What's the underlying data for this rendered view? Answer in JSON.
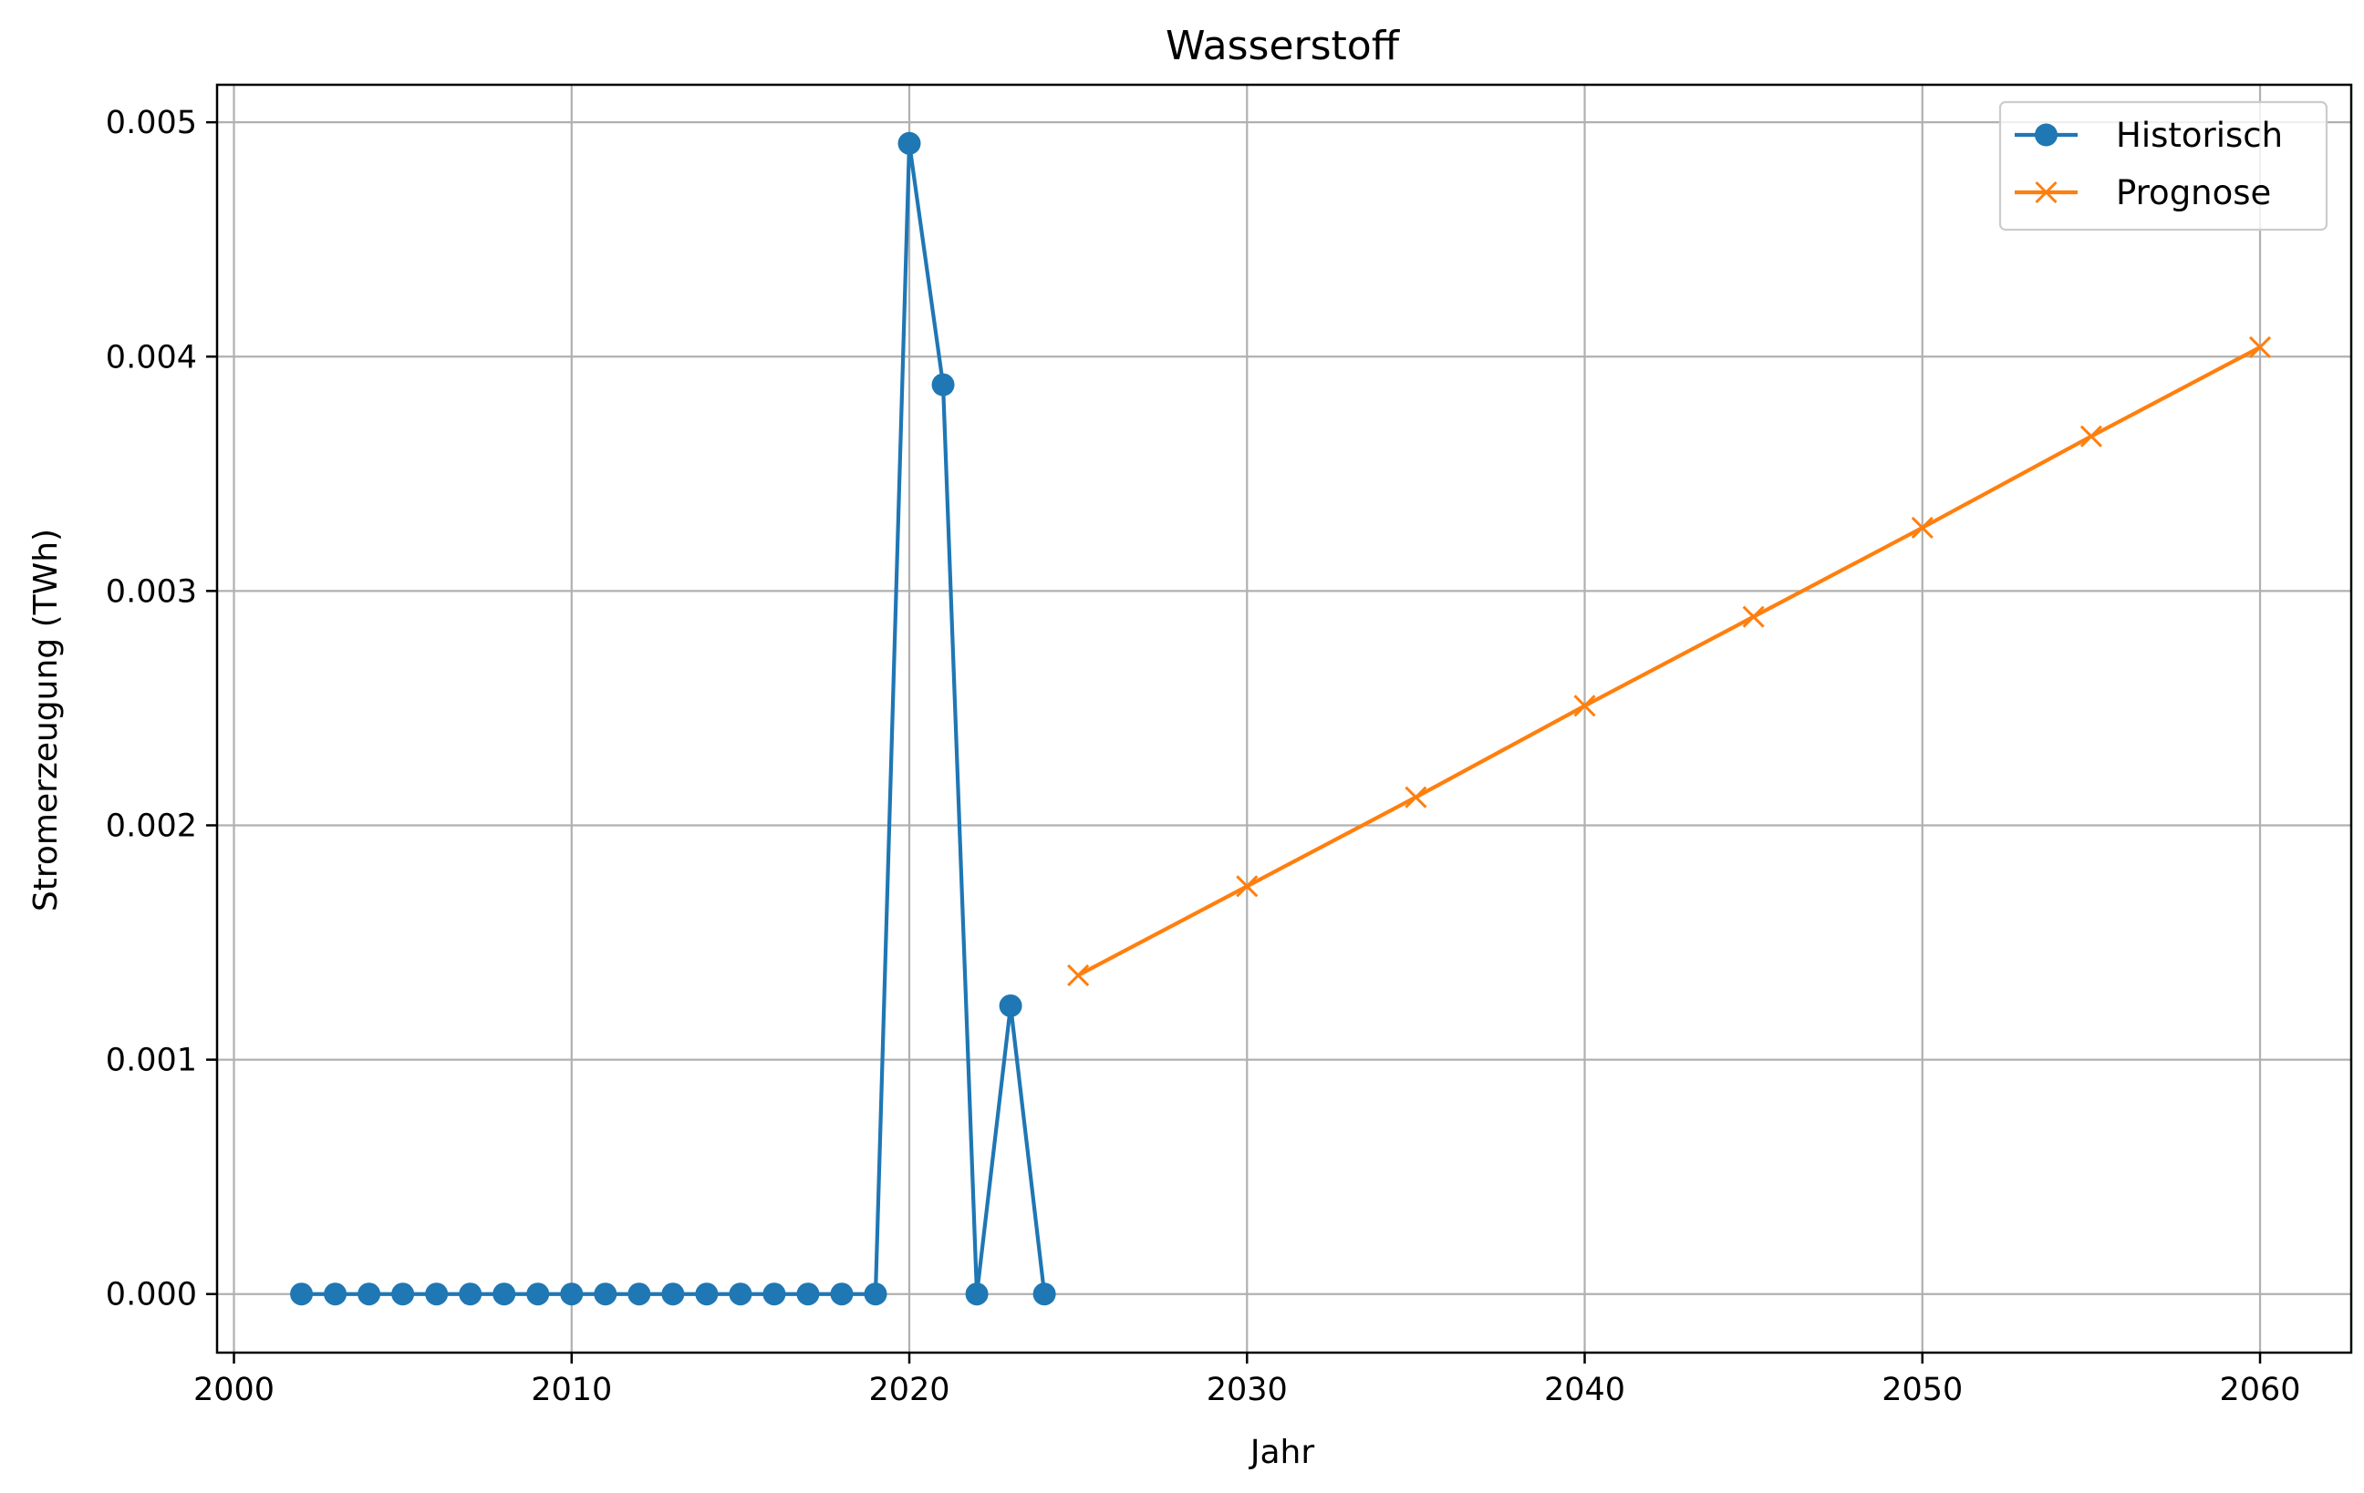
{
  "chart_data": {
    "type": "line",
    "title": "Wasserstoff",
    "xlabel": "Jahr",
    "ylabel": "Stromerzeugung (TWh)",
    "xlim": [
      1999.5,
      2062.7
    ],
    "ylim": [
      -0.00025,
      0.00516
    ],
    "x_ticks": [
      2000,
      2010,
      2020,
      2030,
      2040,
      2050,
      2060
    ],
    "x_tick_labels": [
      "2000",
      "2010",
      "2020",
      "2030",
      "2040",
      "2050",
      "2060"
    ],
    "y_ticks": [
      0.0,
      0.001,
      0.002,
      0.003,
      0.004,
      0.005
    ],
    "y_tick_labels": [
      "0.000",
      "0.001",
      "0.002",
      "0.003",
      "0.004",
      "0.005"
    ],
    "grid": true,
    "legend_position": "top-right",
    "series": [
      {
        "name": "Historisch",
        "color": "#1f77b4",
        "marker": "circle",
        "x": [
          2002,
          2003,
          2004,
          2005,
          2006,
          2007,
          2008,
          2009,
          2010,
          2011,
          2012,
          2013,
          2014,
          2015,
          2016,
          2017,
          2018,
          2019,
          2020,
          2021,
          2022,
          2023,
          2024
        ],
        "y": [
          0,
          0,
          0,
          0,
          0,
          0,
          0,
          0,
          0,
          0,
          0,
          0,
          0,
          0,
          0,
          0,
          0,
          0,
          0.00491,
          0.00388,
          0,
          0.00123,
          0
        ]
      },
      {
        "name": "Prognose",
        "color": "#ff7f0e",
        "marker": "x",
        "x": [
          2025,
          2030,
          2035,
          2040,
          2045,
          2050,
          2055,
          2060
        ],
        "y": [
          0.00136,
          0.00174,
          0.00212,
          0.00251,
          0.00289,
          0.00327,
          0.00366,
          0.00404
        ]
      }
    ]
  }
}
